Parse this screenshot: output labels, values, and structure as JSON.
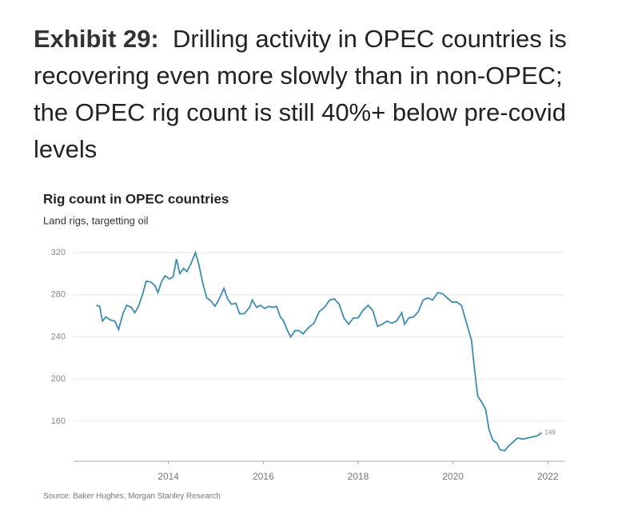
{
  "exhibit_label": "Exhibit 29:",
  "headline": "Drilling activity in OPEC countries is recovering even more slowly than in non-OPEC; the OPEC rig count is still 40%+ below pre-covid levels",
  "chart_data": {
    "type": "line",
    "title": "Rig count in OPEC countries",
    "subtitle": "Land rigs, targetting oil",
    "source": "Source: Baker Hughes, Morgan Stanley Research",
    "color": "#3b8db1",
    "x": [
      2012.48,
      2012.55,
      2012.61,
      2012.68,
      2012.78,
      2012.87,
      2012.95,
      2013.04,
      2013.12,
      2013.22,
      2013.29,
      2013.36,
      2013.46,
      2013.53,
      2013.63,
      2013.71,
      2013.78,
      2013.85,
      2013.93,
      2014.02,
      2014.1,
      2014.17,
      2014.24,
      2014.32,
      2014.39,
      2014.47,
      2014.57,
      2014.64,
      2014.73,
      2014.81,
      2014.9,
      2014.98,
      2015.06,
      2015.17,
      2015.25,
      2015.33,
      2015.42,
      2015.5,
      2015.6,
      2015.71,
      2015.77,
      2015.86,
      2015.94,
      2016.03,
      2016.11,
      2016.2,
      2016.28,
      2016.36,
      2016.43,
      2016.5,
      2016.58,
      2016.67,
      2016.75,
      2016.84,
      2016.96,
      2017.07,
      2017.18,
      2017.29,
      2017.4,
      2017.5,
      2017.6,
      2017.7,
      2017.8,
      2017.9,
      2018.0,
      2018.1,
      2018.21,
      2018.31,
      2018.41,
      2018.51,
      2018.61,
      2018.71,
      2018.81,
      2018.92,
      2018.98,
      2019.07,
      2019.17,
      2019.27,
      2019.37,
      2019.47,
      2019.57,
      2019.68,
      2019.78,
      2019.88,
      2019.98,
      2020.08,
      2020.18,
      2020.28,
      2020.39,
      2020.45,
      2020.52,
      2020.62,
      2020.69,
      2020.76,
      2020.84,
      2020.93,
      2020.99,
      2021.09,
      2021.16,
      2021.26,
      2021.36,
      2021.47,
      2021.57,
      2021.67,
      2021.77,
      2021.87
    ],
    "values": [
      270,
      269,
      255,
      259,
      256,
      255,
      247,
      262,
      270,
      268,
      263,
      268,
      281,
      293,
      292,
      289,
      282,
      292,
      298,
      295,
      297,
      314,
      300,
      305,
      302,
      309,
      320,
      309,
      290,
      277,
      274,
      269,
      275,
      286,
      276,
      271,
      272,
      262,
      262,
      268,
      275,
      268,
      270,
      267,
      269,
      268,
      269,
      259,
      255,
      247,
      240,
      246,
      246,
      243,
      249,
      253,
      264,
      268,
      275,
      276,
      271,
      258,
      252,
      258,
      258,
      265,
      270,
      265,
      250,
      252,
      255,
      253,
      255,
      263,
      252,
      258,
      259,
      264,
      275,
      277,
      275,
      282,
      281,
      277,
      273,
      273,
      270,
      254,
      237,
      211,
      184,
      177,
      171,
      152,
      142,
      139,
      133,
      132,
      136,
      140,
      144,
      143,
      144,
      145,
      146,
      149
    ],
    "xlim": [
      2012,
      2022.35
    ],
    "ylim": [
      122,
      320
    ],
    "xticks": [
      2014,
      2016,
      2018,
      2020,
      2022
    ],
    "yticks": [
      160,
      200,
      240,
      280,
      320
    ],
    "grid": true
  }
}
